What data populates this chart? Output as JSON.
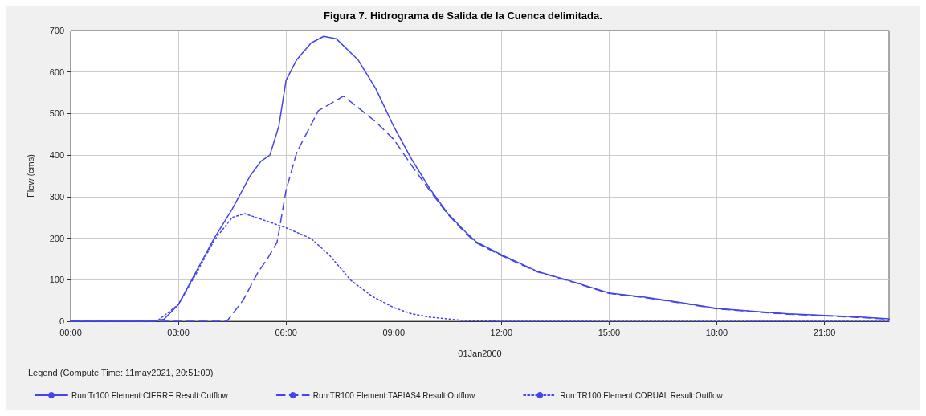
{
  "chart_data": {
    "type": "line",
    "title": "Figura 7. Hidrograma de Salida de la Cuenca delimitada.",
    "xlabel": "01Jan2000",
    "ylabel": "Flow (cms)",
    "legend_title": "Legend (Compute Time: 11may2021, 20:51:00)",
    "xlim": [
      0,
      22.8
    ],
    "xticks": [
      {
        "value": 0,
        "label": "00:00"
      },
      {
        "value": 3,
        "label": "03:00"
      },
      {
        "value": 6,
        "label": "06:00"
      },
      {
        "value": 9,
        "label": "09:00"
      },
      {
        "value": 12,
        "label": "12:00"
      },
      {
        "value": 15,
        "label": "15:00"
      },
      {
        "value": 18,
        "label": "18:00"
      },
      {
        "value": 21,
        "label": "21:00"
      }
    ],
    "ylim": [
      0,
      700
    ],
    "yticks": [
      0,
      100,
      200,
      300,
      400,
      500,
      600,
      700
    ],
    "grid": true,
    "legend": "bottom",
    "series": [
      {
        "name": "Run:Tr100 Element:CIERRE Result:Outflow",
        "color": "#4444ee",
        "line_style": "solid",
        "x": [
          0,
          2.3,
          2.6,
          3,
          3.5,
          4,
          4.5,
          5,
          5.3,
          5.55,
          5.8,
          6,
          6.3,
          6.7,
          7.05,
          7.4,
          8,
          8.5,
          9,
          9.5,
          10,
          10.5,
          11,
          11.3,
          12,
          13,
          14,
          15,
          16,
          17,
          18,
          19,
          20,
          21,
          22,
          22.8
        ],
        "values": [
          0,
          0,
          5,
          40,
          120,
          200,
          270,
          350,
          385,
          400,
          470,
          580,
          630,
          670,
          686,
          680,
          630,
          560,
          469,
          390,
          320,
          260,
          215,
          191,
          160,
          120,
          95,
          68,
          58,
          45,
          31,
          24,
          18,
          14,
          10,
          6
        ]
      },
      {
        "name": "Run:TR100 Element:TAPIAS4 Result:Outflow",
        "color": "#4444ee",
        "line_style": "dashed",
        "x": [
          0,
          4.35,
          4.8,
          5.2,
          5.5,
          5.75,
          6,
          6.3,
          6.9,
          7.6,
          8,
          8.5,
          9,
          9.5,
          10,
          10.5,
          11,
          11.3,
          12,
          13,
          14,
          15,
          16,
          17,
          18,
          19,
          20,
          21,
          22,
          22.8
        ],
        "values": [
          0,
          0,
          50,
          115,
          153,
          190,
          315,
          407,
          507,
          542,
          515,
          480,
          438,
          375,
          315,
          258,
          212,
          189,
          158,
          119,
          94,
          67,
          57,
          44,
          30,
          23,
          17,
          13,
          9,
          5
        ]
      },
      {
        "name": "Run:TR100 Element:CORUAL Result:Outflow",
        "color": "#4444ee",
        "line_style": "dotted",
        "x": [
          0,
          2.4,
          3,
          3.5,
          4,
          4.5,
          4.85,
          5.6,
          6,
          6.7,
          7.2,
          7.8,
          8.4,
          9,
          9.5,
          10,
          10.9,
          12,
          22.8
        ],
        "values": [
          0,
          0,
          40,
          115,
          195,
          250,
          259,
          237,
          225,
          199,
          160,
          99,
          60,
          33,
          18,
          10,
          2,
          0,
          0
        ]
      }
    ]
  }
}
